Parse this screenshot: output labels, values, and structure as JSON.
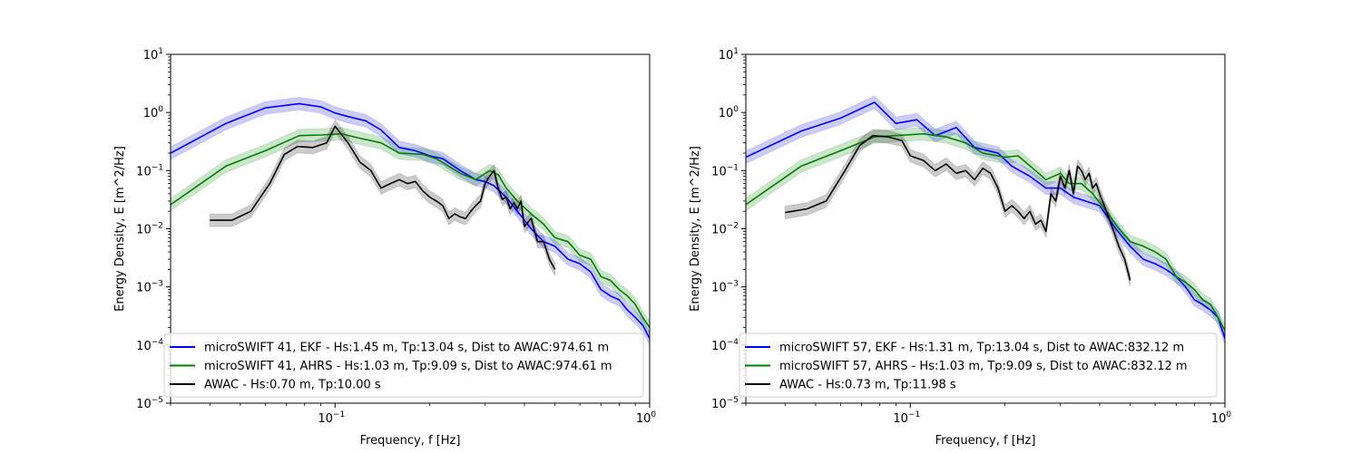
{
  "chart_data": [
    {
      "type": "line",
      "xlabel": "Frequency, f [Hz]",
      "ylabel": "Energy Density, E [m^2/Hz]",
      "xscale": "log",
      "yscale": "log",
      "xlim": [
        0.03,
        1.0
      ],
      "ylim": [
        1e-05,
        10
      ],
      "xticks": [
        {
          "base": "10",
          "exp": "−1",
          "value": 0.1
        },
        {
          "base": "10",
          "exp": "0",
          "value": 1
        }
      ],
      "yticks": [
        {
          "base": "10",
          "exp": "−5",
          "value": 1e-05
        },
        {
          "base": "10",
          "exp": "−4",
          "value": 0.0001
        },
        {
          "base": "10",
          "exp": "−3",
          "value": 0.001
        },
        {
          "base": "10",
          "exp": "−2",
          "value": 0.01
        },
        {
          "base": "10",
          "exp": "−1",
          "value": 0.1
        },
        {
          "base": "10",
          "exp": "0",
          "value": 1
        },
        {
          "base": "10",
          "exp": "1",
          "value": 10
        }
      ],
      "legend_position": "lower-left",
      "series": [
        {
          "name": "microSWIFT 41, EKF - Hs:1.45 m, Tp:13.04 s, Dist to AWAC:974.61 m",
          "color": "#0000ff",
          "x": [
            0.03,
            0.045,
            0.06,
            0.077,
            0.09,
            0.1,
            0.11,
            0.125,
            0.14,
            0.16,
            0.18,
            0.2,
            0.22,
            0.25,
            0.28,
            0.3,
            0.32,
            0.35,
            0.38,
            0.42,
            0.46,
            0.5,
            0.55,
            0.6,
            0.65,
            0.7,
            0.75,
            0.8,
            0.85,
            0.9,
            0.95,
            1.0
          ],
          "y": [
            0.2,
            0.65,
            1.2,
            1.42,
            1.25,
            0.98,
            0.85,
            0.72,
            0.5,
            0.25,
            0.22,
            0.18,
            0.16,
            0.1,
            0.07,
            0.065,
            0.055,
            0.035,
            0.02,
            0.01,
            0.006,
            0.005,
            0.003,
            0.0025,
            0.0018,
            0.0009,
            0.0007,
            0.0006,
            0.0004,
            0.0003,
            0.00022,
            0.00013
          ]
        },
        {
          "name": "microSWIFT 41, AHRS - Hs:1.03 m, Tp:9.09 s, Dist to AWAC:974.61 m",
          "color": "#008000",
          "x": [
            0.03,
            0.045,
            0.06,
            0.077,
            0.09,
            0.105,
            0.12,
            0.14,
            0.16,
            0.19,
            0.21,
            0.25,
            0.28,
            0.31,
            0.33,
            0.35,
            0.38,
            0.42,
            0.46,
            0.5,
            0.55,
            0.6,
            0.65,
            0.7,
            0.75,
            0.8,
            0.85,
            0.9,
            0.95,
            1.0
          ],
          "y": [
            0.026,
            0.12,
            0.22,
            0.4,
            0.41,
            0.43,
            0.36,
            0.3,
            0.2,
            0.19,
            0.16,
            0.09,
            0.07,
            0.1,
            0.085,
            0.05,
            0.03,
            0.018,
            0.012,
            0.007,
            0.006,
            0.0035,
            0.003,
            0.0015,
            0.0013,
            0.0009,
            0.0007,
            0.0005,
            0.0003,
            0.0002
          ]
        },
        {
          "name": "AWAC - Hs:0.70 m, Tp:10.00 s",
          "color": "#000000",
          "x": [
            0.04,
            0.047,
            0.054,
            0.062,
            0.069,
            0.076,
            0.085,
            0.094,
            0.1,
            0.11,
            0.12,
            0.13,
            0.14,
            0.15,
            0.16,
            0.17,
            0.18,
            0.19,
            0.2,
            0.21,
            0.22,
            0.23,
            0.24,
            0.25,
            0.26,
            0.27,
            0.28,
            0.29,
            0.3,
            0.31,
            0.32,
            0.33,
            0.34,
            0.35,
            0.36,
            0.37,
            0.38,
            0.39,
            0.4,
            0.42,
            0.44,
            0.46,
            0.48,
            0.5
          ],
          "y": [
            0.014,
            0.014,
            0.02,
            0.06,
            0.19,
            0.26,
            0.25,
            0.3,
            0.58,
            0.3,
            0.14,
            0.1,
            0.05,
            0.06,
            0.07,
            0.06,
            0.065,
            0.045,
            0.035,
            0.03,
            0.025,
            0.015,
            0.018,
            0.016,
            0.015,
            0.02,
            0.025,
            0.03,
            0.06,
            0.08,
            0.1,
            0.05,
            0.032,
            0.035,
            0.022,
            0.028,
            0.022,
            0.03,
            0.011,
            0.015,
            0.006,
            0.006,
            0.003,
            0.002
          ]
        }
      ],
      "legend": [
        "microSWIFT 41, EKF - Hs:1.45 m, Tp:13.04 s, Dist to AWAC:974.61 m",
        "microSWIFT 41, AHRS - Hs:1.03 m, Tp:9.09 s, Dist to AWAC:974.61 m",
        "AWAC - Hs:0.70 m, Tp:10.00 s"
      ]
    },
    {
      "type": "line",
      "xlabel": "Frequency, f [Hz]",
      "ylabel": "Energy Density, E [m^2/Hz]",
      "xscale": "log",
      "yscale": "log",
      "xlim": [
        0.03,
        1.0
      ],
      "ylim": [
        1e-05,
        10
      ],
      "xticks": [
        {
          "base": "10",
          "exp": "−1",
          "value": 0.1
        },
        {
          "base": "10",
          "exp": "0",
          "value": 1
        }
      ],
      "yticks": [
        {
          "base": "10",
          "exp": "−5",
          "value": 1e-05
        },
        {
          "base": "10",
          "exp": "−4",
          "value": 0.0001
        },
        {
          "base": "10",
          "exp": "−3",
          "value": 0.001
        },
        {
          "base": "10",
          "exp": "−2",
          "value": 0.01
        },
        {
          "base": "10",
          "exp": "−1",
          "value": 0.1
        },
        {
          "base": "10",
          "exp": "0",
          "value": 1
        },
        {
          "base": "10",
          "exp": "1",
          "value": 10
        }
      ],
      "legend_position": "lower-left",
      "series": [
        {
          "name": "microSWIFT 57, EKF - Hs:1.31 m, Tp:13.04 s, Dist to AWAC:832.12 m",
          "color": "#0000ff",
          "x": [
            0.03,
            0.045,
            0.06,
            0.077,
            0.09,
            0.105,
            0.12,
            0.14,
            0.16,
            0.19,
            0.21,
            0.24,
            0.27,
            0.3,
            0.33,
            0.36,
            0.4,
            0.45,
            0.5,
            0.55,
            0.6,
            0.65,
            0.7,
            0.75,
            0.8,
            0.85,
            0.9,
            0.95,
            1.0
          ],
          "y": [
            0.17,
            0.48,
            0.8,
            1.5,
            0.65,
            0.75,
            0.4,
            0.55,
            0.25,
            0.2,
            0.12,
            0.08,
            0.05,
            0.05,
            0.035,
            0.03,
            0.025,
            0.01,
            0.005,
            0.003,
            0.0025,
            0.002,
            0.0015,
            0.001,
            0.0006,
            0.0005,
            0.0004,
            0.0003,
            0.00013
          ]
        },
        {
          "name": "microSWIFT 57, AHRS - Hs:1.03 m, Tp:9.09 s, Dist to AWAC:832.12 m",
          "color": "#008000",
          "x": [
            0.03,
            0.045,
            0.06,
            0.077,
            0.09,
            0.11,
            0.13,
            0.15,
            0.17,
            0.2,
            0.22,
            0.25,
            0.27,
            0.3,
            0.32,
            0.35,
            0.38,
            0.42,
            0.46,
            0.5,
            0.55,
            0.6,
            0.65,
            0.7,
            0.75,
            0.8,
            0.85,
            0.9,
            0.95,
            1.0
          ],
          "y": [
            0.026,
            0.12,
            0.22,
            0.38,
            0.4,
            0.43,
            0.38,
            0.3,
            0.2,
            0.17,
            0.18,
            0.1,
            0.07,
            0.09,
            0.06,
            0.06,
            0.04,
            0.02,
            0.01,
            0.006,
            0.005,
            0.004,
            0.003,
            0.0015,
            0.0012,
            0.0009,
            0.0006,
            0.0005,
            0.0003,
            0.00018
          ]
        },
        {
          "name": "AWAC - Hs:0.73 m, Tp:11.98 s",
          "color": "#000000",
          "x": [
            0.04,
            0.047,
            0.054,
            0.062,
            0.069,
            0.076,
            0.085,
            0.094,
            0.1,
            0.11,
            0.12,
            0.13,
            0.14,
            0.15,
            0.16,
            0.17,
            0.18,
            0.19,
            0.2,
            0.21,
            0.22,
            0.23,
            0.24,
            0.25,
            0.26,
            0.27,
            0.28,
            0.29,
            0.3,
            0.31,
            0.32,
            0.33,
            0.34,
            0.35,
            0.36,
            0.37,
            0.38,
            0.39,
            0.4,
            0.42,
            0.44,
            0.46,
            0.48,
            0.5
          ],
          "y": [
            0.019,
            0.022,
            0.03,
            0.1,
            0.27,
            0.4,
            0.38,
            0.33,
            0.18,
            0.15,
            0.1,
            0.13,
            0.09,
            0.1,
            0.07,
            0.11,
            0.09,
            0.05,
            0.02,
            0.025,
            0.02,
            0.015,
            0.02,
            0.012,
            0.014,
            0.009,
            0.04,
            0.03,
            0.08,
            0.05,
            0.1,
            0.04,
            0.12,
            0.1,
            0.07,
            0.09,
            0.05,
            0.06,
            0.04,
            0.02,
            0.01,
            0.005,
            0.003,
            0.0013
          ]
        }
      ],
      "legend": [
        "microSWIFT 57, EKF - Hs:1.31 m, Tp:13.04 s, Dist to AWAC:832.12 m",
        "microSWIFT 57, AHRS - Hs:1.03 m, Tp:9.09 s, Dist to AWAC:832.12 m",
        "AWAC - Hs:0.73 m, Tp:11.98 s"
      ]
    }
  ]
}
